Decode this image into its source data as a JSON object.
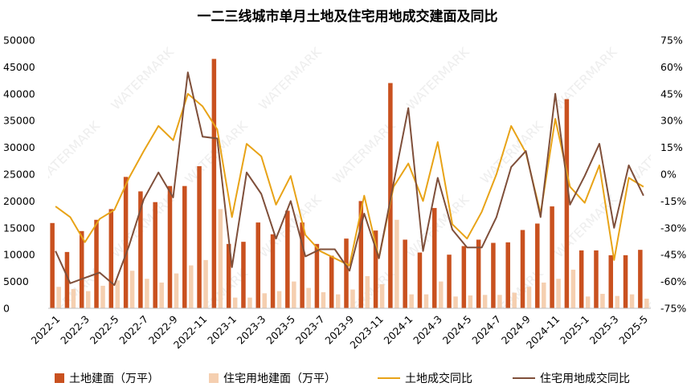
{
  "chart_data": {
    "type": "bar",
    "title": "一二三线城市单月土地及住宅用地成交建面及同比",
    "y_left": {
      "ticks": [
        0,
        5000,
        10000,
        15000,
        20000,
        25000,
        30000,
        35000,
        40000,
        45000,
        50000
      ],
      "ylim": [
        0,
        50000
      ]
    },
    "y_right": {
      "ticks": [
        "75%",
        "60%",
        "45%",
        "30%",
        "15%",
        "0%",
        "-15%",
        "-30%",
        "-45%",
        "-60%",
        "-75%"
      ],
      "ylim": [
        -75,
        75
      ]
    },
    "x_tick_labels": [
      "2022-1",
      "2022-3",
      "2022-5",
      "2022-7",
      "2022-9",
      "2022-11",
      "2023-1",
      "2023-3",
      "2023-5",
      "2023-7",
      "2023-9",
      "2023-11",
      "2024-1",
      "2024-3",
      "2024-5",
      "2024-7",
      "2024-9",
      "2024-11",
      "2025-1",
      "2025-3",
      "2025-5"
    ],
    "categories": [
      "2022-1",
      "2022-2",
      "2022-3",
      "2022-4",
      "2022-5",
      "2022-6",
      "2022-7",
      "2022-8",
      "2022-9",
      "2022-10",
      "2022-11",
      "2022-12",
      "2023-1",
      "2023-2",
      "2023-3",
      "2023-4",
      "2023-5",
      "2023-6",
      "2023-7",
      "2023-8",
      "2023-9",
      "2023-10",
      "2023-11",
      "2023-12",
      "2024-1",
      "2024-2",
      "2024-3",
      "2024-4",
      "2024-5",
      "2024-6",
      "2024-7",
      "2024-8",
      "2024-9",
      "2024-10",
      "2024-11",
      "2024-12",
      "2025-1",
      "2025-2",
      "2025-3",
      "2025-4",
      "2025-5"
    ],
    "series": [
      {
        "name": "土地建面（万平）",
        "axis": "left",
        "kind": "bar",
        "color": "#c9511f",
        "values": [
          15900,
          10500,
          14400,
          16500,
          18500,
          24500,
          21800,
          19800,
          22800,
          22800,
          26500,
          46500,
          12000,
          12400,
          16000,
          13800,
          18200,
          16000,
          12000,
          9800,
          13000,
          20000,
          14500,
          42000,
          12800,
          10400,
          18700,
          10000,
          11600,
          12800,
          12200,
          12300,
          14600,
          15800,
          19000,
          39000,
          10800,
          10800,
          9900,
          9900,
          10900
        ]
      },
      {
        "name": "住宅用地建面（万平）",
        "axis": "left",
        "kind": "bar",
        "color": "#f5cfb0",
        "values": [
          4000,
          3600,
          3200,
          4200,
          5200,
          7000,
          5500,
          4800,
          6500,
          8000,
          9000,
          18500,
          2000,
          2000,
          2800,
          3200,
          5000,
          3800,
          3000,
          2600,
          3500,
          6000,
          4500,
          16500,
          2600,
          2600,
          5000,
          2200,
          2400,
          2500,
          2500,
          2900,
          4000,
          4800,
          5500,
          7200,
          2200,
          2700,
          2300,
          2600,
          1800
        ]
      },
      {
        "name": "土地成交同比",
        "axis": "right",
        "kind": "line",
        "color": "#e8a317",
        "values": [
          -18,
          -24,
          -38,
          -25,
          -20,
          -2,
          13,
          27,
          19,
          45,
          38,
          25,
          -24,
          17,
          10,
          -17,
          -1,
          -34,
          -43,
          -47,
          -51,
          -12,
          -47,
          -7,
          6,
          -15,
          18,
          -28,
          -36,
          -21,
          0,
          27,
          12,
          -22,
          31,
          -7,
          -16,
          5,
          -48,
          -2,
          -7
        ]
      },
      {
        "name": "住宅用地成交同比",
        "axis": "right",
        "kind": "line",
        "color": "#7f4f3a",
        "values": [
          -43,
          -61,
          -58,
          -55,
          -62,
          -40,
          -14,
          1,
          -13,
          57,
          21,
          20,
          -52,
          1,
          -11,
          -36,
          -15,
          -46,
          -42,
          -42,
          -54,
          -22,
          -47,
          -5,
          37,
          -43,
          -2,
          -31,
          -41,
          -41,
          -24,
          4,
          13,
          -24,
          45,
          -17,
          -1,
          17,
          -30,
          5,
          -12
        ]
      }
    ],
    "legend_placement": "bottom",
    "grid": false
  }
}
